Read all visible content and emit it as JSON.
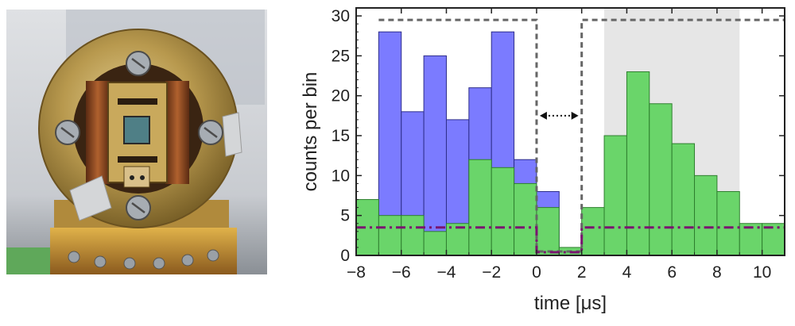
{
  "photo": {
    "kind": "photograph-of-ion-trap-assembly"
  },
  "chart_data": {
    "type": "bar",
    "xlabel": "time [μs]",
    "ylabel": "counts per bin",
    "xlim": [
      -8,
      11
    ],
    "ylim": [
      0,
      31
    ],
    "x_ticks": [
      -8,
      -6,
      -4,
      -2,
      0,
      2,
      4,
      6,
      8,
      10
    ],
    "y_ticks": [
      0,
      5,
      10,
      15,
      20,
      25,
      30
    ],
    "x_tick_labels": [
      "−8",
      "−6",
      "−4",
      "−2",
      "0",
      "2",
      "4",
      "6",
      "8",
      "10"
    ],
    "y_tick_labels": [
      "0",
      "5",
      "10",
      "15",
      "20",
      "25",
      "30"
    ],
    "bin_width": 1,
    "shaded_region": [
      3,
      9
    ],
    "gate_window": {
      "low": 0,
      "high": 2,
      "arrow": "double-headed-dotted"
    },
    "series": [
      {
        "color": "#7b7bff",
        "bins": [
          {
            "x0": -7,
            "value": 28
          },
          {
            "x0": -6,
            "value": 18
          },
          {
            "x0": -5,
            "value": 25
          },
          {
            "x0": -4,
            "value": 17
          },
          {
            "x0": -3,
            "value": 21
          },
          {
            "x0": -2,
            "value": 28
          },
          {
            "x0": -1,
            "value": 12
          },
          {
            "x0": 0,
            "value": 8
          }
        ]
      },
      {
        "color": "#6ad56a",
        "bins": [
          {
            "x0": -8,
            "value": 7
          },
          {
            "x0": -7,
            "value": 5
          },
          {
            "x0": -6,
            "value": 5
          },
          {
            "x0": -5,
            "value": 3
          },
          {
            "x0": -4,
            "value": 4
          },
          {
            "x0": -3,
            "value": 12
          },
          {
            "x0": -2,
            "value": 11
          },
          {
            "x0": -1,
            "value": 9
          },
          {
            "x0": 0,
            "value": 6
          },
          {
            "x0": 1,
            "value": 1
          },
          {
            "x0": 2,
            "value": 6
          },
          {
            "x0": 3,
            "value": 15
          },
          {
            "x0": 4,
            "value": 23
          },
          {
            "x0": 5,
            "value": 19
          },
          {
            "x0": 6,
            "value": 14
          },
          {
            "x0": 7,
            "value": 10
          },
          {
            "x0": 8,
            "value": 8
          },
          {
            "x0": 9,
            "value": 4
          },
          {
            "x0": 10,
            "value": 4
          }
        ]
      }
    ],
    "dashed_line": {
      "color": "#666666",
      "style": "dashed",
      "points": [
        [
          -7,
          29.5
        ],
        [
          0,
          29.5
        ],
        [
          0,
          0.5
        ],
        [
          2,
          0.5
        ],
        [
          2,
          29.5
        ],
        [
          11,
          29.5
        ]
      ]
    },
    "dashdot_line": {
      "color": "#7a1570",
      "style": "dash-dot",
      "points": [
        [
          -8,
          3.5
        ],
        [
          0,
          3.5
        ],
        [
          0,
          0.4
        ],
        [
          2,
          0.4
        ],
        [
          2,
          3.5
        ],
        [
          11,
          3.5
        ]
      ]
    }
  }
}
